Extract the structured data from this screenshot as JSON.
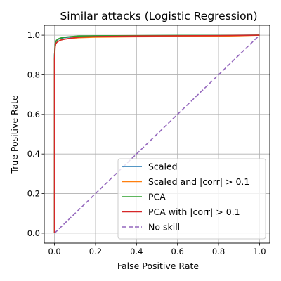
{
  "chart_data": {
    "type": "line",
    "title": "Similar attacks (Logistic Regression)",
    "xlabel": "False Positive Rate",
    "ylabel": "True Positive Rate",
    "xlim": [
      -0.05,
      1.05
    ],
    "ylim": [
      -0.05,
      1.05
    ],
    "x_ticks": [
      0.0,
      0.2,
      0.4,
      0.6,
      0.8,
      1.0
    ],
    "y_ticks": [
      0.0,
      0.2,
      0.4,
      0.6,
      0.8,
      1.0
    ],
    "x_tick_labels": [
      "0.0",
      "0.2",
      "0.4",
      "0.6",
      "0.8",
      "1.0"
    ],
    "y_tick_labels": [
      "0.0",
      "0.2",
      "0.4",
      "0.6",
      "0.8",
      "1.0"
    ],
    "grid": true,
    "legend_position": "lower-right",
    "series": [
      {
        "name": "Scaled",
        "color": "#1f77b4",
        "style": "solid",
        "x": [
          0.0,
          0.0,
          0.003,
          0.006,
          0.01,
          0.015,
          0.02,
          0.03,
          0.05,
          0.08,
          0.12,
          0.2,
          0.3,
          0.5,
          0.7,
          1.0
        ],
        "y": [
          0.0,
          0.9,
          0.95,
          0.965,
          0.972,
          0.977,
          0.98,
          0.984,
          0.988,
          0.991,
          0.994,
          0.996,
          0.997,
          0.998,
          0.999,
          1.0
        ]
      },
      {
        "name": "Scaled and |corr| > 0.1",
        "color": "#ff7f0e",
        "style": "solid",
        "x": [
          0.0,
          0.0,
          0.003,
          0.006,
          0.01,
          0.02,
          0.03,
          0.05,
          0.08,
          0.12,
          0.2,
          0.4,
          0.6,
          0.8,
          0.9,
          1.0
        ],
        "y": [
          0.0,
          0.88,
          0.94,
          0.955,
          0.963,
          0.97,
          0.975,
          0.98,
          0.984,
          0.987,
          0.99,
          0.992,
          0.993,
          0.995,
          0.997,
          1.0
        ]
      },
      {
        "name": "PCA",
        "color": "#2ca02c",
        "style": "solid",
        "x": [
          0.0,
          0.0,
          0.003,
          0.006,
          0.01,
          0.02,
          0.03,
          0.05,
          0.08,
          0.12,
          0.2,
          0.4,
          0.6,
          0.8,
          1.0
        ],
        "y": [
          0.0,
          0.9,
          0.955,
          0.968,
          0.975,
          0.982,
          0.986,
          0.99,
          0.993,
          0.996,
          0.997,
          0.998,
          0.999,
          0.999,
          1.0
        ]
      },
      {
        "name": "PCA with |corr| > 0.1",
        "color": "#d62728",
        "style": "solid",
        "x": [
          0.0,
          0.0,
          0.003,
          0.006,
          0.01,
          0.015,
          0.02,
          0.03,
          0.05,
          0.08,
          0.12,
          0.2,
          0.4,
          0.6,
          0.8,
          1.0
        ],
        "y": [
          0.0,
          0.88,
          0.94,
          0.955,
          0.962,
          0.967,
          0.97,
          0.975,
          0.98,
          0.985,
          0.99,
          0.993,
          0.996,
          0.997,
          0.998,
          1.0
        ]
      },
      {
        "name": "No skill",
        "color": "#9467bd",
        "style": "dashed",
        "x": [
          0.0,
          1.0
        ],
        "y": [
          0.0,
          1.0
        ]
      }
    ]
  }
}
